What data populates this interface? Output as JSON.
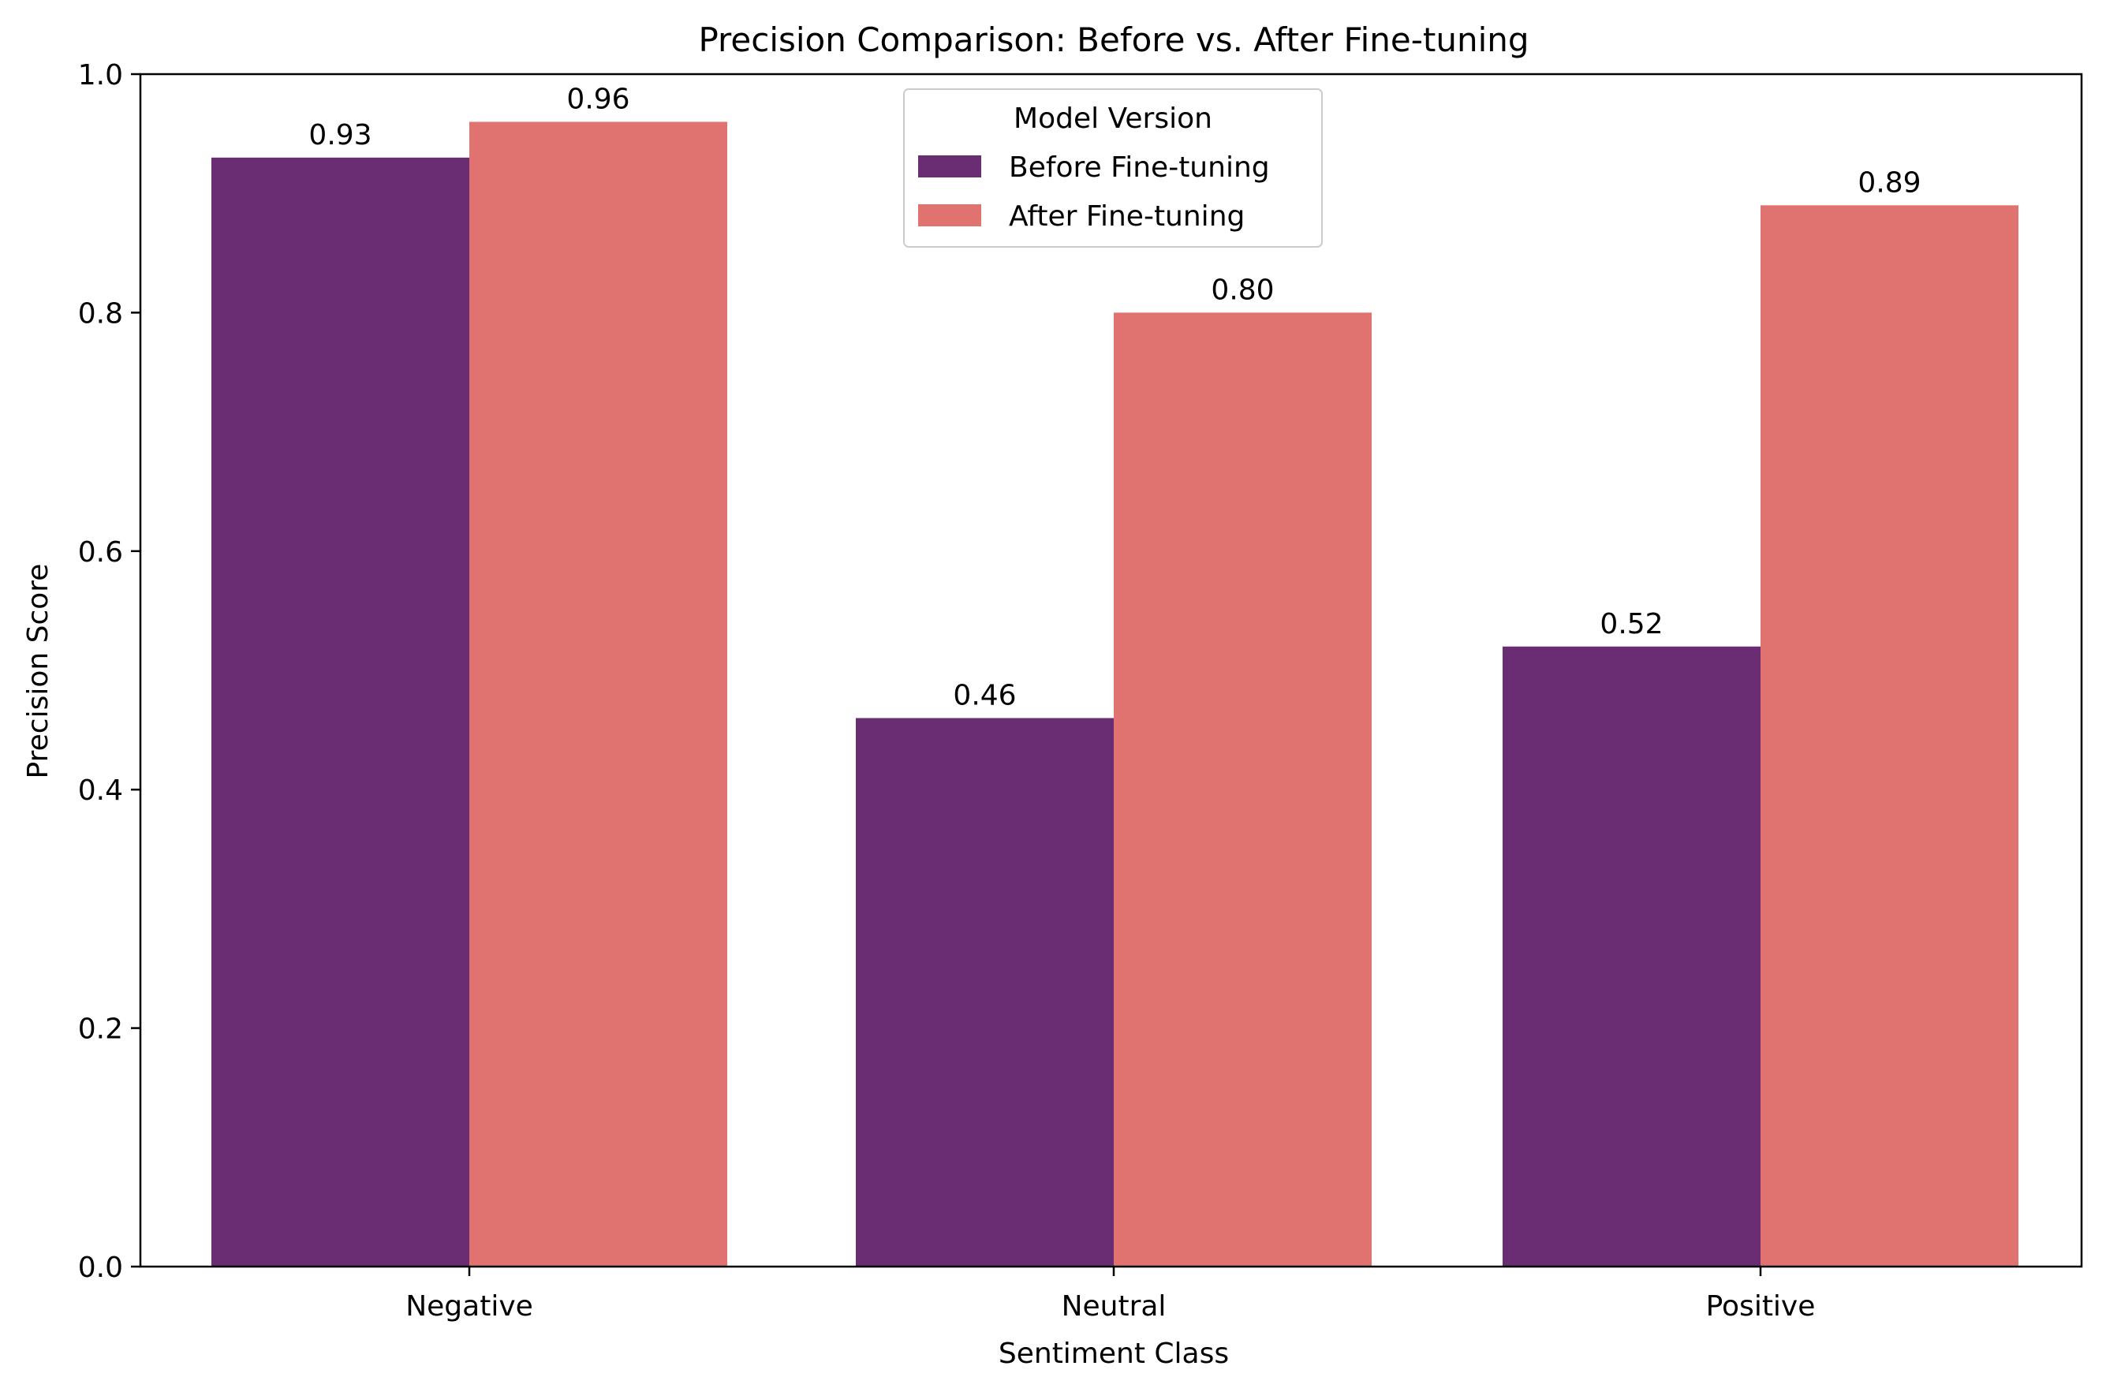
{
  "chart_data": {
    "type": "bar",
    "title": "Precision Comparison: Before vs. After Fine-tuning",
    "xlabel": "Sentiment Class",
    "ylabel": "Precision Score",
    "categories": [
      "Negative",
      "Neutral",
      "Positive"
    ],
    "ylim": [
      0,
      1.0
    ],
    "yticks": [
      "0.0",
      "0.2",
      "0.4",
      "0.6",
      "0.8",
      "1.0"
    ],
    "grid": false,
    "legend": {
      "title": "Model Version",
      "placement": "top-center"
    },
    "series": [
      {
        "name": "Before Fine-tuning",
        "color": "#6a2c73",
        "values": [
          0.93,
          0.46,
          0.52
        ],
        "labels": [
          "0.93",
          "0.46",
          "0.52"
        ]
      },
      {
        "name": "After Fine-tuning",
        "color": "#e07370",
        "values": [
          0.96,
          0.8,
          0.89
        ],
        "labels": [
          "0.96",
          "0.80",
          "0.89"
        ]
      }
    ]
  }
}
